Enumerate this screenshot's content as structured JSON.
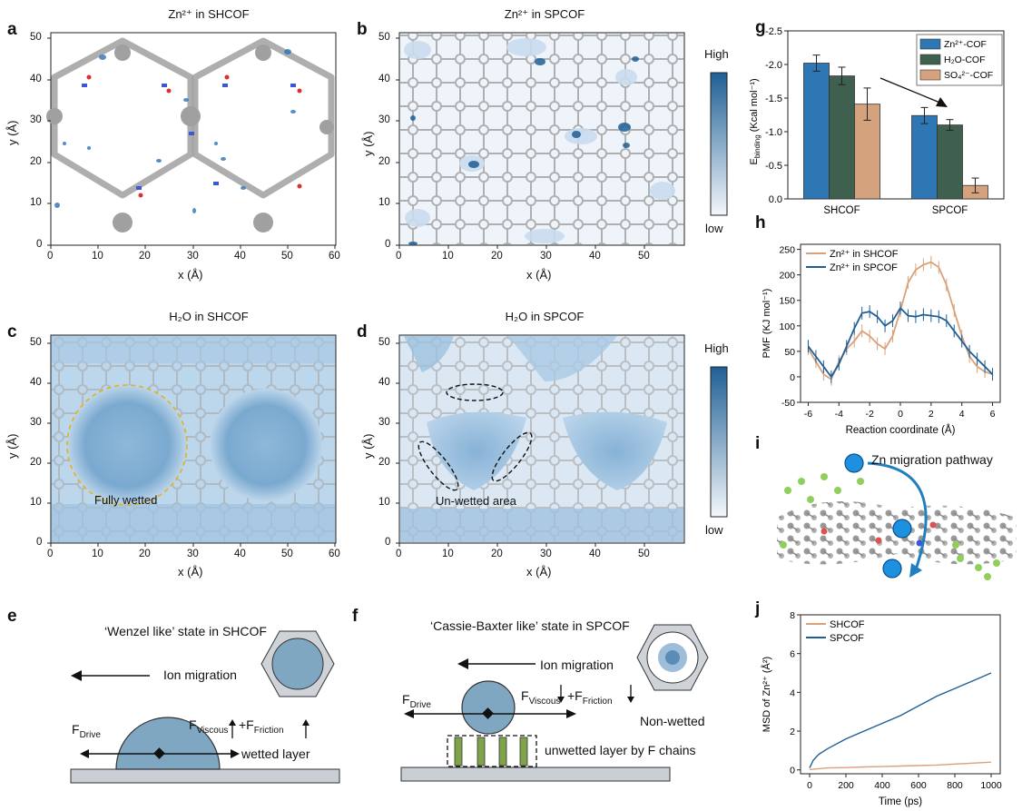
{
  "panels": {
    "a": {
      "letter": "a",
      "title": "Zn²⁺ in SHCOF",
      "xlabel": "x (Å)",
      "ylabel": "y (Å)",
      "xticks": [
        "0",
        "10",
        "20",
        "30",
        "40",
        "50",
        "60"
      ],
      "yticks": [
        "0",
        "10",
        "20",
        "30",
        "40",
        "50"
      ]
    },
    "b": {
      "letter": "b",
      "title": "Zn²⁺ in SPCOF",
      "xlabel": "x (Å)",
      "ylabel": "y (Å)",
      "xticks": [
        "0",
        "10",
        "20",
        "30",
        "40",
        "50"
      ],
      "yticks": [
        "0",
        "10",
        "20",
        "30",
        "40",
        "50"
      ]
    },
    "c": {
      "letter": "c",
      "title": "H₂O in SHCOF",
      "xlabel": "x (Å)",
      "ylabel": "y (Å)",
      "xticks": [
        "0",
        "10",
        "20",
        "30",
        "40",
        "50",
        "60"
      ],
      "yticks": [
        "0",
        "10",
        "20",
        "30",
        "40",
        "50"
      ],
      "annotation": "Fully wetted"
    },
    "d": {
      "letter": "d",
      "title": "H₂O in SPCOF",
      "xlabel": "x (Å)",
      "ylabel": "y (Å)",
      "xticks": [
        "0",
        "10",
        "20",
        "30",
        "40",
        "50"
      ],
      "yticks": [
        "0",
        "10",
        "20",
        "30",
        "40",
        "50"
      ],
      "annotation": "Un-wetted area"
    },
    "e": {
      "letter": "e",
      "title": "‘Wenzel like’ state in SHCOF",
      "migration": "Ion migration",
      "fdrive": "F",
      "fdrive_sub": "Drive",
      "fvisc": "F",
      "fvisc_sub": "Viscous",
      "plusf": "+F",
      "ffric_sub": "Friction",
      "layer": "wetted layer"
    },
    "f": {
      "letter": "f",
      "title": "‘Cassie-Baxter like’ state in SPCOF",
      "migration": "Ion migration",
      "fdrive": "F",
      "fdrive_sub": "Drive",
      "fvisc": "F",
      "fvisc_sub": "Viscous",
      "plusf": "+F",
      "ffric_sub": "Friction",
      "nonwet": "Non-wetted",
      "layer": "unwetted layer by F chains"
    },
    "g": {
      "letter": "g"
    },
    "h": {
      "letter": "h"
    },
    "i": {
      "letter": "i",
      "label": "Zn migration pathway"
    },
    "j": {
      "letter": "j"
    }
  },
  "colorbar": {
    "high": "High",
    "low": "low"
  },
  "colors": {
    "blue": "#1f5f95",
    "orange": "#d9a27a",
    "darkgreen": "#4a6a5a",
    "grey_framework": "#9a9a9a"
  },
  "chart_data": [
    {
      "id": "g",
      "type": "bar",
      "ylabel": "E",
      "ylabel_sub": "binding",
      "ylabel_units": " (Kcal mol⁻¹)",
      "categories": [
        "SHCOF",
        "SPCOF"
      ],
      "ylim": [
        -2.5,
        0.0
      ],
      "inverted": true,
      "yticks": [
        "-2.5",
        "-2.0",
        "-1.5",
        "-1.0",
        "-0.5",
        "0.0"
      ],
      "series": [
        {
          "name": "Zn²⁺-COF",
          "values": [
            -2.02,
            -1.24
          ],
          "errors": [
            0.12,
            0.12
          ],
          "color": "#2f76b5"
        },
        {
          "name": "H₂O-COF",
          "values": [
            -1.83,
            -1.1
          ],
          "errors": [
            0.13,
            0.08
          ],
          "color": "#3f5f4f"
        },
        {
          "name": "SO₄²⁻-COF",
          "values": [
            -1.41,
            -0.2
          ],
          "errors": [
            0.24,
            0.11
          ],
          "color": "#d4a27c"
        }
      ]
    },
    {
      "id": "h",
      "type": "line",
      "xlabel": "Reaction coordinate (Å)",
      "ylabel": "PMF (KJ mol⁻¹)",
      "xlim": [
        -6.5,
        6.5
      ],
      "ylim": [
        -50,
        260
      ],
      "xticks": [
        "-6",
        "-4",
        "-2",
        "0",
        "2",
        "4",
        "6"
      ],
      "yticks": [
        "-50",
        "0",
        "50",
        "100",
        "150",
        "200",
        "250"
      ],
      "series": [
        {
          "name": "Zn²⁺ in SHCOF",
          "color": "#d9a27a",
          "x": [
            -6,
            -5.5,
            -5,
            -4.5,
            -4,
            -3.5,
            -3,
            -2.5,
            -2,
            -1.5,
            -1,
            -0.5,
            0,
            0.5,
            1,
            1.5,
            2,
            2.5,
            3,
            3.5,
            4,
            4.5,
            5,
            5.5,
            6
          ],
          "y": [
            55,
            30,
            5,
            -5,
            30,
            55,
            70,
            90,
            80,
            65,
            55,
            80,
            130,
            185,
            210,
            220,
            225,
            215,
            180,
            130,
            80,
            40,
            20,
            10,
            5
          ]
        },
        {
          "name": "Zn²⁺ in SPCOF",
          "color": "#1f5f95",
          "x": [
            -6,
            -5.5,
            -5,
            -4.5,
            -4,
            -3.5,
            -3,
            -2.5,
            -2,
            -1.5,
            -1,
            -0.5,
            0,
            0.5,
            1,
            1.5,
            2,
            2.5,
            3,
            3.5,
            4,
            4.5,
            5,
            5.5,
            6
          ],
          "y": [
            60,
            40,
            20,
            0,
            25,
            60,
            95,
            125,
            128,
            118,
            100,
            110,
            135,
            120,
            118,
            122,
            120,
            118,
            110,
            90,
            70,
            50,
            35,
            20,
            5
          ]
        }
      ]
    },
    {
      "id": "j",
      "type": "line",
      "xlabel": "Time (ps)",
      "ylabel": "MSD of Zn²⁺ (Å²)",
      "xlim": [
        -50,
        1050
      ],
      "ylim": [
        -0.2,
        8
      ],
      "xticks": [
        "0",
        "200",
        "400",
        "600",
        "800",
        "1000"
      ],
      "yticks": [
        "0",
        "2",
        "4",
        "6",
        "8"
      ],
      "series": [
        {
          "name": "SHCOF",
          "color": "#d9a27a",
          "x": [
            0,
            100,
            200,
            300,
            400,
            500,
            600,
            700,
            800,
            900,
            1000
          ],
          "y": [
            0.02,
            0.1,
            0.12,
            0.15,
            0.17,
            0.2,
            0.22,
            0.25,
            0.3,
            0.35,
            0.4
          ]
        },
        {
          "name": "SPCOF",
          "color": "#1f5f95",
          "x": [
            0,
            20,
            50,
            100,
            200,
            300,
            400,
            500,
            600,
            700,
            800,
            900,
            1000
          ],
          "y": [
            0.1,
            0.5,
            0.8,
            1.1,
            1.6,
            2.0,
            2.4,
            2.8,
            3.3,
            3.8,
            4.2,
            4.6,
            5.0
          ]
        }
      ]
    }
  ]
}
